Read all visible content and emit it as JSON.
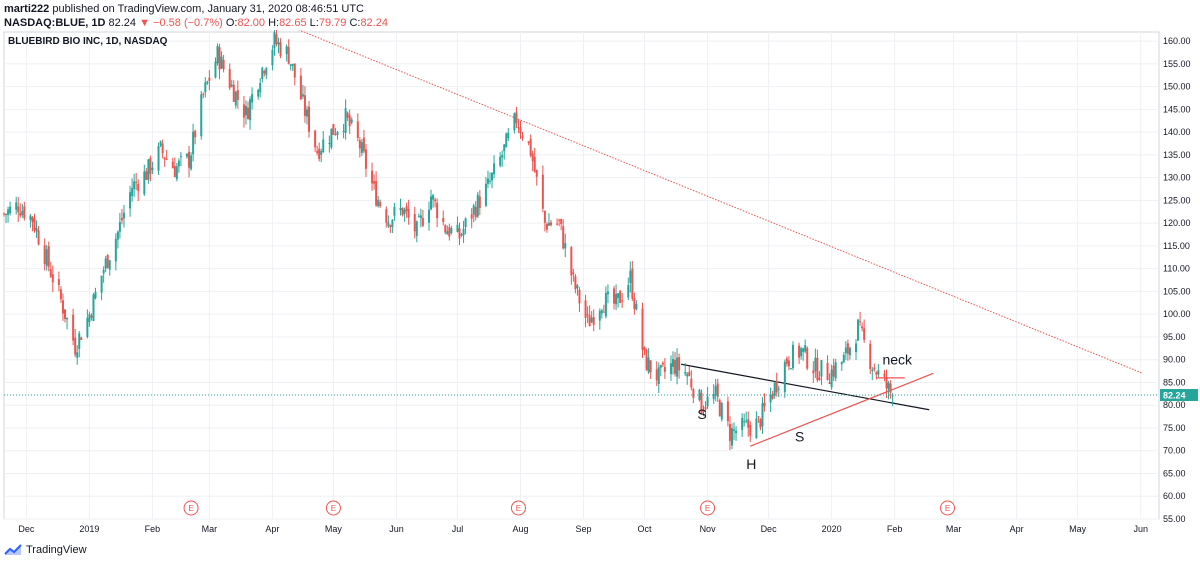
{
  "header": {
    "publisher": "marti222",
    "published_text": "published on TradingView.com, January 31, 2020 08:46:51 UTC",
    "symbol": "NASDAQ:BLUE, 1D",
    "last": "82.24",
    "change": "−0.58 (−0.7%)",
    "open_label": "O:",
    "open": "82.00",
    "high_label": "H:",
    "high": "82.65",
    "low_label": "L:",
    "low": "79.79",
    "close_label": "C:",
    "close": "82.24"
  },
  "footer": {
    "brand": "TradingView",
    "logo_icon": "tradingview-logo-icon"
  },
  "chart_data": {
    "type": "candlestick",
    "title": "BLUEBIRD BIO INC, 1D, NASDAQ",
    "ylim": [
      55,
      162
    ],
    "y_ticks": [
      55,
      60,
      65,
      70,
      75,
      80,
      85,
      90,
      95,
      100,
      105,
      110,
      115,
      120,
      125,
      130,
      135,
      140,
      145,
      150,
      155,
      160
    ],
    "y_tick_labels": [
      "55.00",
      "60.00",
      "65.00",
      "70.00",
      "75.00",
      "80.00",
      "85.00",
      "90.00",
      "95.00",
      "100.00",
      "105.00",
      "110.00",
      "115.00",
      "120.00",
      "125.00",
      "130.00",
      "135.00",
      "140.00",
      "145.00",
      "150.00",
      "155.00",
      "160.00"
    ],
    "x_domain": [
      "2018-11-20",
      "2020-06-10"
    ],
    "x_ticks": [
      {
        "label": "Dec",
        "date": "2018-12-01"
      },
      {
        "label": "2019",
        "date": "2019-01-01"
      },
      {
        "label": "Feb",
        "date": "2019-02-01"
      },
      {
        "label": "Mar",
        "date": "2019-03-01"
      },
      {
        "label": "Apr",
        "date": "2019-04-01"
      },
      {
        "label": "May",
        "date": "2019-05-01"
      },
      {
        "label": "Jun",
        "date": "2019-06-01"
      },
      {
        "label": "Jul",
        "date": "2019-07-01"
      },
      {
        "label": "Aug",
        "date": "2019-08-01"
      },
      {
        "label": "Sep",
        "date": "2019-09-01"
      },
      {
        "label": "Oct",
        "date": "2019-10-01"
      },
      {
        "label": "Nov",
        "date": "2019-11-01"
      },
      {
        "label": "Dec",
        "date": "2019-12-01"
      },
      {
        "label": "2020",
        "date": "2020-01-01"
      },
      {
        "label": "Feb",
        "date": "2020-02-01"
      },
      {
        "label": "Mar",
        "date": "2020-03-01"
      },
      {
        "label": "Apr",
        "date": "2020-04-01"
      },
      {
        "label": "May",
        "date": "2020-05-01"
      },
      {
        "label": "Jun",
        "date": "2020-06-01"
      }
    ],
    "close_path": [
      [
        "2018-11-20",
        122
      ],
      [
        "2018-11-27",
        124
      ],
      [
        "2018-12-04",
        121
      ],
      [
        "2018-12-11",
        112
      ],
      [
        "2018-12-18",
        103
      ],
      [
        "2018-12-25",
        93
      ],
      [
        "2019-01-01",
        100
      ],
      [
        "2019-01-08",
        110
      ],
      [
        "2019-01-15",
        118
      ],
      [
        "2019-01-22",
        128
      ],
      [
        "2019-01-29",
        131
      ],
      [
        "2019-02-05",
        136
      ],
      [
        "2019-02-12",
        132
      ],
      [
        "2019-02-19",
        134
      ],
      [
        "2019-02-26",
        148
      ],
      [
        "2019-03-05",
        157
      ],
      [
        "2019-03-12",
        150
      ],
      [
        "2019-03-19",
        144
      ],
      [
        "2019-03-26",
        153
      ],
      [
        "2019-04-02",
        160
      ],
      [
        "2019-04-09",
        157
      ],
      [
        "2019-04-16",
        146
      ],
      [
        "2019-04-23",
        136
      ],
      [
        "2019-04-30",
        140
      ],
      [
        "2019-05-07",
        143
      ],
      [
        "2019-05-14",
        137
      ],
      [
        "2019-05-21",
        127
      ],
      [
        "2019-05-28",
        121
      ],
      [
        "2019-06-04",
        123
      ],
      [
        "2019-06-11",
        118
      ],
      [
        "2019-06-18",
        126
      ],
      [
        "2019-06-25",
        119
      ],
      [
        "2019-07-02",
        117
      ],
      [
        "2019-07-09",
        123
      ],
      [
        "2019-07-16",
        128
      ],
      [
        "2019-07-23",
        135
      ],
      [
        "2019-07-30",
        143
      ],
      [
        "2019-08-06",
        136
      ],
      [
        "2019-08-13",
        120
      ],
      [
        "2019-08-20",
        120
      ],
      [
        "2019-08-27",
        107
      ],
      [
        "2019-09-03",
        98
      ],
      [
        "2019-09-10",
        103
      ],
      [
        "2019-09-17",
        102
      ],
      [
        "2019-09-24",
        108
      ],
      [
        "2019-10-01",
        90
      ],
      [
        "2019-10-08",
        86
      ],
      [
        "2019-10-15",
        89
      ],
      [
        "2019-10-22",
        87
      ],
      [
        "2019-10-29",
        80
      ],
      [
        "2019-11-05",
        82
      ],
      [
        "2019-11-12",
        74
      ],
      [
        "2019-11-19",
        75
      ],
      [
        "2019-11-26",
        76
      ],
      [
        "2019-12-03",
        83
      ],
      [
        "2019-12-10",
        90
      ],
      [
        "2019-12-17",
        92
      ],
      [
        "2019-12-24",
        88
      ],
      [
        "2019-12-31",
        87
      ],
      [
        "2020-01-07",
        90
      ],
      [
        "2020-01-14",
        97
      ],
      [
        "2020-01-21",
        89
      ],
      [
        "2020-01-28",
        84
      ],
      [
        "2020-01-31",
        82.24
      ]
    ],
    "last_price": 82.24,
    "last_price_label": "82.24",
    "annotations": [
      "S",
      "H",
      "S",
      "neck"
    ],
    "earnings_marker_label": "E",
    "earnings_dates": [
      "2019-02-20",
      "2019-05-01",
      "2019-07-31",
      "2019-11-01",
      "2020-02-27"
    ],
    "trendlines": [
      {
        "name": "long-term resistance",
        "color": "#ef5350",
        "style": "dotted",
        "from": [
          "2019-04-11",
          163
        ],
        "to": [
          "2020-06-02",
          87
        ]
      },
      {
        "name": "neckline",
        "color": "#131722",
        "style": "solid",
        "from": [
          "2019-10-19",
          89
        ],
        "to": [
          "2020-02-18",
          79
        ]
      },
      {
        "name": "rising support",
        "color": "#ef5350",
        "style": "solid",
        "from": [
          "2019-11-22",
          71
        ],
        "to": [
          "2020-02-20",
          87
        ]
      },
      {
        "name": "neck level",
        "color": "#ef5350",
        "style": "solid",
        "from": [
          "2020-01-23",
          86
        ],
        "to": [
          "2020-02-06",
          86
        ]
      }
    ],
    "colors": {
      "up": "#26a69a",
      "down": "#ef5350",
      "last_price": "#26a69a",
      "earnings": "#ef5350",
      "grid": "#eef1f4"
    }
  }
}
